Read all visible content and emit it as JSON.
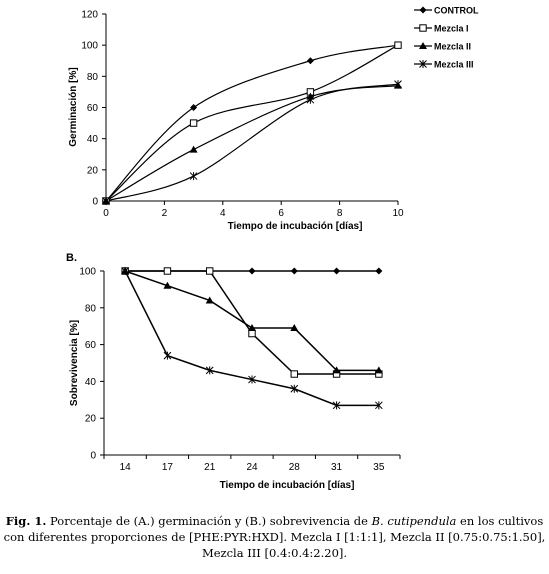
{
  "chart_data": [
    {
      "type": "line",
      "xlabel": "Tiempo de incubación  [días]",
      "ylabel": "Germinación [%]",
      "xlim": [
        0,
        10
      ],
      "ylim": [
        0,
        120
      ],
      "xticks": [
        0,
        2,
        4,
        6,
        8,
        10
      ],
      "yticks": [
        0,
        20,
        40,
        60,
        80,
        100,
        120
      ],
      "legend_position": "right",
      "grid": false,
      "series": [
        {
          "name": "CONTROL",
          "marker": "diamond",
          "x": [
            0,
            3,
            7,
            10
          ],
          "values": [
            0,
            60,
            90,
            100
          ]
        },
        {
          "name": "Mezcla I",
          "marker": "square",
          "x": [
            0,
            3,
            7,
            10
          ],
          "values": [
            0,
            50,
            70,
            100
          ]
        },
        {
          "name": "Mezcla II",
          "marker": "triangle",
          "x": [
            0,
            3,
            7,
            10
          ],
          "values": [
            0,
            33,
            67,
            74
          ]
        },
        {
          "name": "Mezcla III",
          "marker": "star",
          "x": [
            0,
            3,
            7,
            10
          ],
          "values": [
            0,
            16,
            65,
            75
          ]
        }
      ]
    },
    {
      "type": "line",
      "panel_label": "B.",
      "xlabel": "Tiempo de incubación [días]",
      "ylabel": "Sobrevivencia [%]",
      "categories": [
        "14",
        "17",
        "21",
        "24",
        "28",
        "31",
        "35"
      ],
      "ylim": [
        0,
        100
      ],
      "yticks": [
        0,
        20,
        40,
        60,
        80,
        100
      ],
      "grid": false,
      "series": [
        {
          "name": "CONTROL",
          "marker": "diamond",
          "values": [
            100,
            100,
            100,
            100,
            100,
            100,
            100
          ]
        },
        {
          "name": "Mezcla I",
          "marker": "square",
          "values": [
            100,
            100,
            100,
            66,
            44,
            44,
            44
          ]
        },
        {
          "name": "Mezcla II",
          "marker": "triangle",
          "values": [
            100,
            92,
            84,
            69,
            69,
            46,
            46
          ]
        },
        {
          "name": "Mezcla III",
          "marker": "star",
          "values": [
            100,
            54,
            46,
            41,
            36,
            27,
            27
          ]
        }
      ]
    }
  ],
  "caption": {
    "label": "Fig. 1.",
    "text_before_species": " Porcentaje de (A.) germinación y (B.) sobrevivencia de ",
    "species": "B. cutipendula",
    "text_after_species": " en los cultivos con diferentes proporciones de [PHE:PYR:HXD]. Mezcla I [1:1:1], Mezcla II [0.75:0.75:1.50], Mezcla III [0.4:0.4:2.20]."
  }
}
